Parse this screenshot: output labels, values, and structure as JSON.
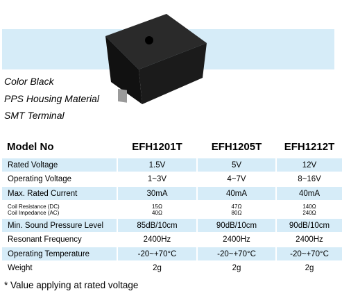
{
  "features": [
    "Color Black",
    "PPS Housing Material",
    "SMT Terminal"
  ],
  "table": {
    "header": [
      "Model No",
      "EFH1201T",
      "EFH1205T",
      "EFH1212T"
    ],
    "rows": [
      [
        "Rated Voltage",
        "1.5V",
        "5V",
        "12V"
      ],
      [
        "Operating Voltage",
        "1~3V",
        "4~7V",
        "8~16V"
      ],
      [
        "Max. Rated Current",
        "30mA",
        "40mA",
        "40mA"
      ],
      [
        [
          "Coil Resistance  (DC)",
          "Coil Impedance  (AC)"
        ],
        [
          "15Ω",
          "40Ω"
        ],
        [
          "47Ω",
          "80Ω"
        ],
        [
          "140Ω",
          "240Ω"
        ]
      ],
      [
        "Min. Sound Pressure Level",
        "85dB/10cm",
        "90dB/10cm",
        "90dB/10cm"
      ],
      [
        "Resonant Frequency",
        "2400Hz",
        "2400Hz",
        "2400Hz"
      ],
      [
        "Operating Temperature",
        "-20~+70°C",
        "-20~+70°C",
        "-20~+70°C"
      ],
      [
        "Weight",
        "2g",
        "2g",
        "2g"
      ]
    ]
  },
  "footnote": "* Value applying at rated voltage"
}
